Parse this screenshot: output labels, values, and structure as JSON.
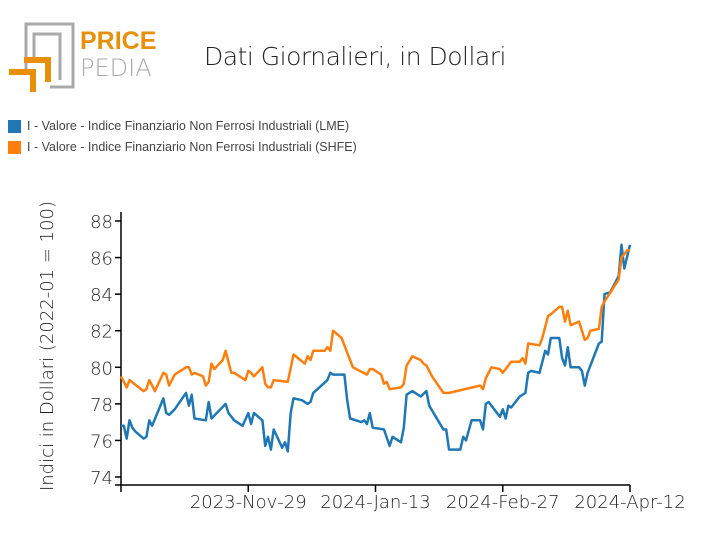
{
  "logo": {
    "text_top": "PRICE",
    "text_bottom": "PEDIA",
    "color": "#e8900c"
  },
  "title": "Dati Giornalieri, in Dollari",
  "chart_data": {
    "type": "line",
    "title": "Dati Giornalieri, in Dollari",
    "xlabel": "",
    "ylabel": "Indici in Dollari (2022-01 = 100)",
    "xlim": [
      "2023-10-15",
      "2024-04-12"
    ],
    "ylim": [
      74,
      88
    ],
    "yticks": [
      74,
      76,
      78,
      80,
      82,
      84,
      86,
      88
    ],
    "xticks": [
      {
        "date": "2023-10-15",
        "label": ""
      },
      {
        "date": "2023-11-29",
        "label": "2023-Nov-29"
      },
      {
        "date": "2024-01-13",
        "label": "2024-Jan-13"
      },
      {
        "date": "2024-02-27",
        "label": "2024-Feb-27"
      },
      {
        "date": "2024-04-12",
        "label": "2024-Apr-12"
      }
    ],
    "grid": false,
    "legend_position": "top-left",
    "series": [
      {
        "name": "I - Valore - Indice Finanziario Non Ferrosi Industriali (LME)",
        "color": "#1f77b4",
        "points": [
          [
            "2023-10-15",
            76.8
          ],
          [
            "2023-10-16",
            76.8
          ],
          [
            "2023-10-17",
            76.1
          ],
          [
            "2023-10-18",
            77.1
          ],
          [
            "2023-10-19",
            76.7
          ],
          [
            "2023-10-20",
            76.5
          ],
          [
            "2023-10-23",
            76.1
          ],
          [
            "2023-10-24",
            76.2
          ],
          [
            "2023-10-25",
            77.1
          ],
          [
            "2023-10-26",
            76.8
          ],
          [
            "2023-10-30",
            78.3
          ],
          [
            "2023-10-31",
            77.5
          ],
          [
            "2023-11-01",
            77.4
          ],
          [
            "2023-11-03",
            77.7
          ],
          [
            "2023-11-07",
            78.6
          ],
          [
            "2023-11-08",
            77.9
          ],
          [
            "2023-11-09",
            78.5
          ],
          [
            "2023-11-10",
            77.2
          ],
          [
            "2023-11-14",
            77.1
          ],
          [
            "2023-11-15",
            78.1
          ],
          [
            "2023-11-16",
            77.2
          ],
          [
            "2023-11-21",
            78.0
          ],
          [
            "2023-11-22",
            77.5
          ],
          [
            "2023-11-24",
            77.1
          ],
          [
            "2023-11-27",
            76.8
          ],
          [
            "2023-11-29",
            77.5
          ],
          [
            "2023-11-30",
            76.9
          ],
          [
            "2023-12-01",
            77.5
          ],
          [
            "2023-12-04",
            77.1
          ],
          [
            "2023-12-05",
            75.7
          ],
          [
            "2023-12-06",
            76.2
          ],
          [
            "2023-12-07",
            75.5
          ],
          [
            "2023-12-08",
            76.6
          ],
          [
            "2023-12-11",
            75.6
          ],
          [
            "2023-12-12",
            75.9
          ],
          [
            "2023-12-13",
            75.4
          ],
          [
            "2023-12-14",
            77.5
          ],
          [
            "2023-12-15",
            78.3
          ],
          [
            "2023-12-18",
            78.2
          ],
          [
            "2023-12-20",
            78.0
          ],
          [
            "2023-12-21",
            78.1
          ],
          [
            "2023-12-22",
            78.6
          ],
          [
            "2023-12-27",
            79.3
          ],
          [
            "2023-12-28",
            79.7
          ],
          [
            "2023-12-29",
            79.6
          ],
          [
            "2024-01-02",
            79.6
          ],
          [
            "2024-01-03",
            78.2
          ],
          [
            "2024-01-04",
            77.2
          ],
          [
            "2024-01-08",
            77.0
          ],
          [
            "2024-01-09",
            77.1
          ],
          [
            "2024-01-10",
            76.9
          ],
          [
            "2024-01-11",
            77.5
          ],
          [
            "2024-01-12",
            76.7
          ],
          [
            "2024-01-16",
            76.6
          ],
          [
            "2024-01-18",
            75.7
          ],
          [
            "2024-01-19",
            76.2
          ],
          [
            "2024-01-22",
            75.9
          ],
          [
            "2024-01-23",
            76.7
          ],
          [
            "2024-01-24",
            78.5
          ],
          [
            "2024-01-26",
            78.7
          ],
          [
            "2024-01-29",
            78.4
          ],
          [
            "2024-01-31",
            78.7
          ],
          [
            "2024-02-01",
            77.9
          ],
          [
            "2024-02-06",
            76.6
          ],
          [
            "2024-02-07",
            76.6
          ],
          [
            "2024-02-08",
            75.5
          ],
          [
            "2024-02-12",
            75.5
          ],
          [
            "2024-02-13",
            76.2
          ],
          [
            "2024-02-14",
            76.0
          ],
          [
            "2024-02-16",
            77.1
          ],
          [
            "2024-02-19",
            77.1
          ],
          [
            "2024-02-20",
            76.6
          ],
          [
            "2024-02-21",
            78.0
          ],
          [
            "2024-02-22",
            78.1
          ],
          [
            "2024-02-26",
            77.3
          ],
          [
            "2024-02-27",
            77.7
          ],
          [
            "2024-02-28",
            77.2
          ],
          [
            "2024-02-29",
            77.9
          ],
          [
            "2024-03-01",
            77.8
          ],
          [
            "2024-03-04",
            78.4
          ],
          [
            "2024-03-06",
            78.6
          ],
          [
            "2024-03-07",
            79.7
          ],
          [
            "2024-03-08",
            79.8
          ],
          [
            "2024-03-11",
            79.7
          ],
          [
            "2024-03-13",
            80.9
          ],
          [
            "2024-03-14",
            80.7
          ],
          [
            "2024-03-15",
            81.6
          ],
          [
            "2024-03-18",
            81.6
          ],
          [
            "2024-03-19",
            80.5
          ],
          [
            "2024-03-20",
            80.1
          ],
          [
            "2024-03-21",
            81.1
          ],
          [
            "2024-03-22",
            80.0
          ],
          [
            "2024-03-25",
            80.0
          ],
          [
            "2024-03-26",
            79.8
          ],
          [
            "2024-03-27",
            79.0
          ],
          [
            "2024-03-28",
            79.7
          ],
          [
            "2024-04-01",
            81.3
          ],
          [
            "2024-04-02",
            81.4
          ],
          [
            "2024-04-03",
            84.0
          ],
          [
            "2024-04-05",
            84.1
          ],
          [
            "2024-04-08",
            85.0
          ],
          [
            "2024-04-09",
            86.7
          ],
          [
            "2024-04-10",
            85.4
          ],
          [
            "2024-04-12",
            86.7
          ]
        ]
      },
      {
        "name": "I - Valore - Indice Finanziario Non Ferrosi Industriali (SHFE)",
        "color": "#ff7f0e",
        "points": [
          [
            "2023-10-15",
            79.5
          ],
          [
            "2023-10-17",
            78.9
          ],
          [
            "2023-10-18",
            79.3
          ],
          [
            "2023-10-23",
            78.7
          ],
          [
            "2023-10-24",
            78.8
          ],
          [
            "2023-10-25",
            79.3
          ],
          [
            "2023-10-27",
            78.7
          ],
          [
            "2023-10-30",
            79.7
          ],
          [
            "2023-10-31",
            79.6
          ],
          [
            "2023-11-01",
            79.0
          ],
          [
            "2023-11-03",
            79.6
          ],
          [
            "2023-11-07",
            80.0
          ],
          [
            "2023-11-08",
            80.0
          ],
          [
            "2023-11-09",
            79.6
          ],
          [
            "2023-11-10",
            79.7
          ],
          [
            "2023-11-13",
            79.5
          ],
          [
            "2023-11-14",
            79.0
          ],
          [
            "2023-11-15",
            79.2
          ],
          [
            "2023-11-16",
            80.2
          ],
          [
            "2023-11-17",
            79.9
          ],
          [
            "2023-11-20",
            80.4
          ],
          [
            "2023-11-21",
            80.9
          ],
          [
            "2023-11-23",
            79.7
          ],
          [
            "2023-11-24",
            79.7
          ],
          [
            "2023-11-28",
            79.3
          ],
          [
            "2023-11-29",
            79.8
          ],
          [
            "2023-11-30",
            79.7
          ],
          [
            "2023-12-01",
            79.5
          ],
          [
            "2023-12-04",
            80.0
          ],
          [
            "2023-12-05",
            79.1
          ],
          [
            "2023-12-06",
            78.9
          ],
          [
            "2023-12-07",
            78.9
          ],
          [
            "2023-12-08",
            79.3
          ],
          [
            "2023-12-13",
            79.2
          ],
          [
            "2023-12-15",
            80.7
          ],
          [
            "2023-12-19",
            80.2
          ],
          [
            "2023-12-20",
            80.6
          ],
          [
            "2023-12-21",
            80.4
          ],
          [
            "2023-12-22",
            80.9
          ],
          [
            "2023-12-26",
            80.9
          ],
          [
            "2023-12-27",
            81.1
          ],
          [
            "2023-12-28",
            80.9
          ],
          [
            "2023-12-29",
            82.0
          ],
          [
            "2024-01-01",
            81.6
          ],
          [
            "2024-01-03",
            80.8
          ],
          [
            "2024-01-05",
            80.0
          ],
          [
            "2024-01-10",
            79.6
          ],
          [
            "2024-01-11",
            79.9
          ],
          [
            "2024-01-12",
            79.9
          ],
          [
            "2024-01-15",
            79.6
          ],
          [
            "2024-01-16",
            79.1
          ],
          [
            "2024-01-17",
            79.2
          ],
          [
            "2024-01-18",
            78.8
          ],
          [
            "2024-01-22",
            78.9
          ],
          [
            "2024-01-23",
            79.1
          ],
          [
            "2024-01-24",
            80.1
          ],
          [
            "2024-01-26",
            80.6
          ],
          [
            "2024-01-29",
            80.4
          ],
          [
            "2024-01-30",
            80.2
          ],
          [
            "2024-01-31",
            80.1
          ],
          [
            "2024-02-02",
            79.5
          ],
          [
            "2024-02-06",
            78.6
          ],
          [
            "2024-02-07",
            78.6
          ],
          [
            "2024-02-08",
            78.6
          ],
          [
            "2024-02-19",
            79.0
          ],
          [
            "2024-02-20",
            78.8
          ],
          [
            "2024-02-21",
            79.4
          ],
          [
            "2024-02-23",
            80.0
          ],
          [
            "2024-02-26",
            79.9
          ],
          [
            "2024-02-27",
            79.7
          ],
          [
            "2024-03-01",
            80.3
          ],
          [
            "2024-03-04",
            80.3
          ],
          [
            "2024-03-05",
            80.5
          ],
          [
            "2024-03-06",
            80.2
          ],
          [
            "2024-03-07",
            81.3
          ],
          [
            "2024-03-11",
            81.2
          ],
          [
            "2024-03-12",
            81.6
          ],
          [
            "2024-03-14",
            82.8
          ],
          [
            "2024-03-15",
            82.9
          ],
          [
            "2024-03-18",
            83.3
          ],
          [
            "2024-03-19",
            83.3
          ],
          [
            "2024-03-20",
            82.5
          ],
          [
            "2024-03-21",
            83.1
          ],
          [
            "2024-03-22",
            82.3
          ],
          [
            "2024-03-25",
            82.5
          ],
          [
            "2024-03-27",
            81.5
          ],
          [
            "2024-03-28",
            81.6
          ],
          [
            "2024-03-29",
            82.0
          ],
          [
            "2024-04-01",
            82.1
          ],
          [
            "2024-04-02",
            83.3
          ],
          [
            "2024-04-03",
            83.6
          ],
          [
            "2024-04-08",
            84.8
          ],
          [
            "2024-04-09",
            86.0
          ],
          [
            "2024-04-11",
            86.4
          ],
          [
            "2024-04-12",
            86.4
          ]
        ]
      }
    ]
  }
}
